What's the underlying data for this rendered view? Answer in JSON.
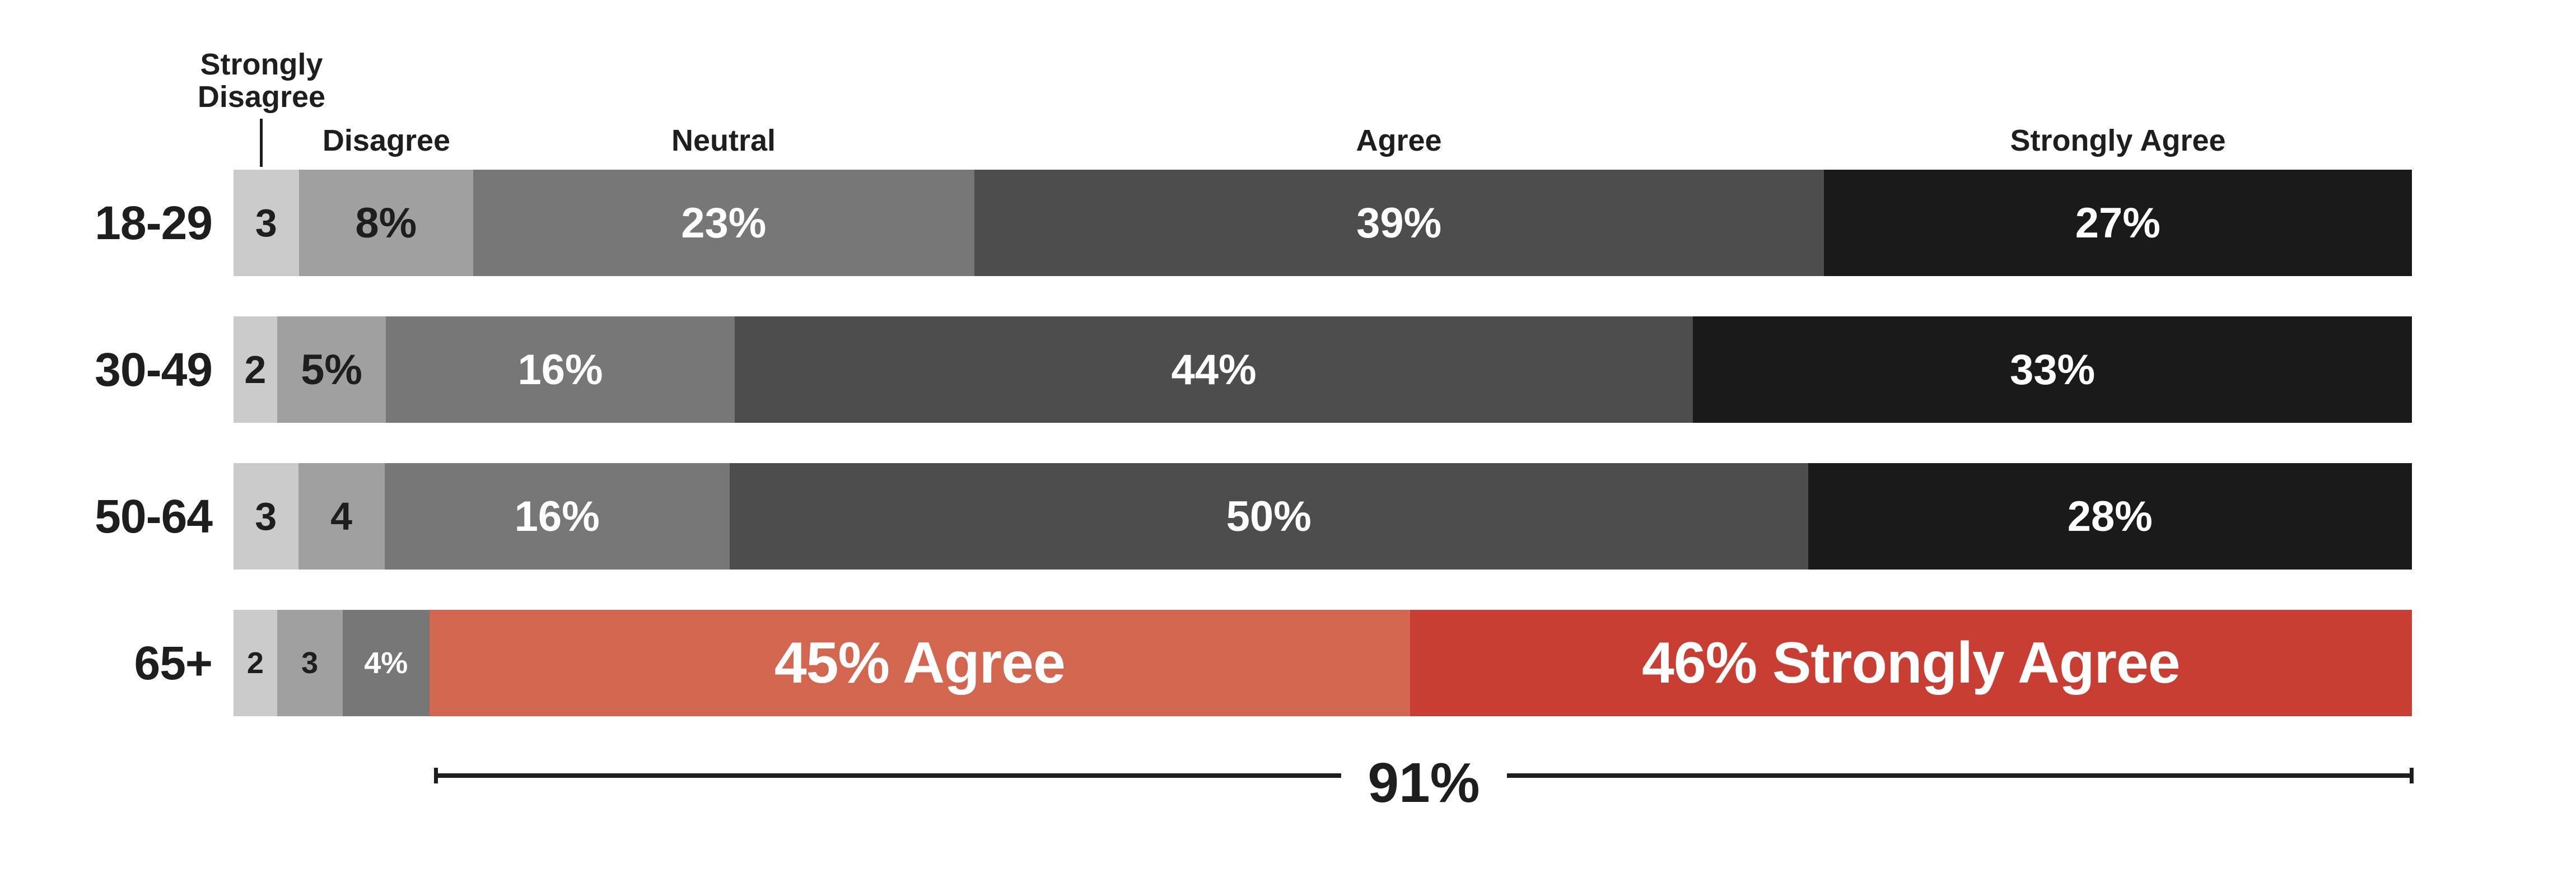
{
  "palette": {
    "strongly_disagree_gray": "#cbcbcb",
    "disagree_gray": "#a0a0a0",
    "neutral_gray": "#777777",
    "agree_gray": "#4d4d4d",
    "strongly_agree_black": "#1a1a1a",
    "agree_salmon": "#d2664f",
    "strongly_agree_red": "#c83e33",
    "text_dark": "#1e1e1e",
    "text_light": "#ffffff"
  },
  "legend": {
    "strongly_disagree": "Strongly Disagree",
    "disagree": "Disagree",
    "neutral": "Neutral",
    "agree": "Agree",
    "strongly_agree": "Strongly Agree"
  },
  "bracket": {
    "label": "91%"
  },
  "chart_data": {
    "type": "bar",
    "stacked": true,
    "orientation": "horizontal",
    "title": "",
    "categories": [
      "18-29",
      "30-49",
      "50-64",
      "65+"
    ],
    "levels": [
      "Strongly Disagree",
      "Disagree",
      "Neutral",
      "Agree",
      "Strongly Agree"
    ],
    "series": [
      {
        "name": "Strongly Disagree",
        "values": [
          3,
          2,
          3,
          2
        ]
      },
      {
        "name": "Disagree",
        "values": [
          8,
          5,
          4,
          3
        ]
      },
      {
        "name": "Neutral",
        "values": [
          23,
          16,
          16,
          4
        ]
      },
      {
        "name": "Agree",
        "values": [
          39,
          44,
          50,
          45
        ]
      },
      {
        "name": "Strongly Agree",
        "values": [
          27,
          33,
          28,
          46
        ]
      }
    ],
    "annotation": {
      "label": "91%",
      "spans": "Agree + Strongly Agree of 65+ group"
    },
    "rows": [
      {
        "label": "18-29",
        "segments": [
          {
            "level": "Strongly Disagree",
            "value": 3,
            "text": "3",
            "bg": "#cbcbcb",
            "fg": "dark",
            "size": "s"
          },
          {
            "level": "Disagree",
            "value": 8,
            "text": "8%",
            "bg": "#a0a0a0",
            "fg": "dark",
            "size": "m"
          },
          {
            "level": "Neutral",
            "value": 23,
            "text": "23%",
            "bg": "#777777",
            "fg": "light",
            "size": "m"
          },
          {
            "level": "Agree",
            "value": 39,
            "text": "39%",
            "bg": "#4d4d4d",
            "fg": "light",
            "size": "m"
          },
          {
            "level": "Strongly Agree",
            "value": 27,
            "text": "27%",
            "bg": "#1a1a1a",
            "fg": "light",
            "size": "m"
          }
        ]
      },
      {
        "label": "30-49",
        "segments": [
          {
            "level": "Strongly Disagree",
            "value": 2,
            "text": "2",
            "bg": "#cbcbcb",
            "fg": "dark",
            "size": "s"
          },
          {
            "level": "Disagree",
            "value": 5,
            "text": "5%",
            "bg": "#a0a0a0",
            "fg": "dark",
            "size": "m"
          },
          {
            "level": "Neutral",
            "value": 16,
            "text": "16%",
            "bg": "#777777",
            "fg": "light",
            "size": "m"
          },
          {
            "level": "Agree",
            "value": 44,
            "text": "44%",
            "bg": "#4d4d4d",
            "fg": "light",
            "size": "m"
          },
          {
            "level": "Strongly Agree",
            "value": 33,
            "text": "33%",
            "bg": "#1a1a1a",
            "fg": "light",
            "size": "m"
          }
        ]
      },
      {
        "label": "50-64",
        "segments": [
          {
            "level": "Strongly Disagree",
            "value": 3,
            "text": "3",
            "bg": "#cbcbcb",
            "fg": "dark",
            "size": "s"
          },
          {
            "level": "Disagree",
            "value": 4,
            "text": "4",
            "bg": "#a0a0a0",
            "fg": "dark",
            "size": "s"
          },
          {
            "level": "Neutral",
            "value": 16,
            "text": "16%",
            "bg": "#777777",
            "fg": "light",
            "size": "m"
          },
          {
            "level": "Agree",
            "value": 50,
            "text": "50%",
            "bg": "#4d4d4d",
            "fg": "light",
            "size": "m"
          },
          {
            "level": "Strongly Agree",
            "value": 28,
            "text": "28%",
            "bg": "#1a1a1a",
            "fg": "light",
            "size": "m"
          }
        ]
      },
      {
        "label": "65+",
        "segments": [
          {
            "level": "Strongly Disagree",
            "value": 2,
            "text": "2",
            "bg": "#cbcbcb",
            "fg": "dark",
            "size": "xs"
          },
          {
            "level": "Disagree",
            "value": 3,
            "text": "3",
            "bg": "#a0a0a0",
            "fg": "dark",
            "size": "xs"
          },
          {
            "level": "Neutral",
            "value": 4,
            "text": "4%",
            "bg": "#777777",
            "fg": "light",
            "size": "xs"
          },
          {
            "level": "Agree",
            "value": 45,
            "text": "45% Agree",
            "bg": "#d2664f",
            "fg": "light",
            "size": "xl"
          },
          {
            "level": "Strongly Agree",
            "value": 46,
            "text": "46% Strongly Agree",
            "bg": "#c83e33",
            "fg": "light",
            "size": "xl"
          }
        ]
      }
    ]
  }
}
